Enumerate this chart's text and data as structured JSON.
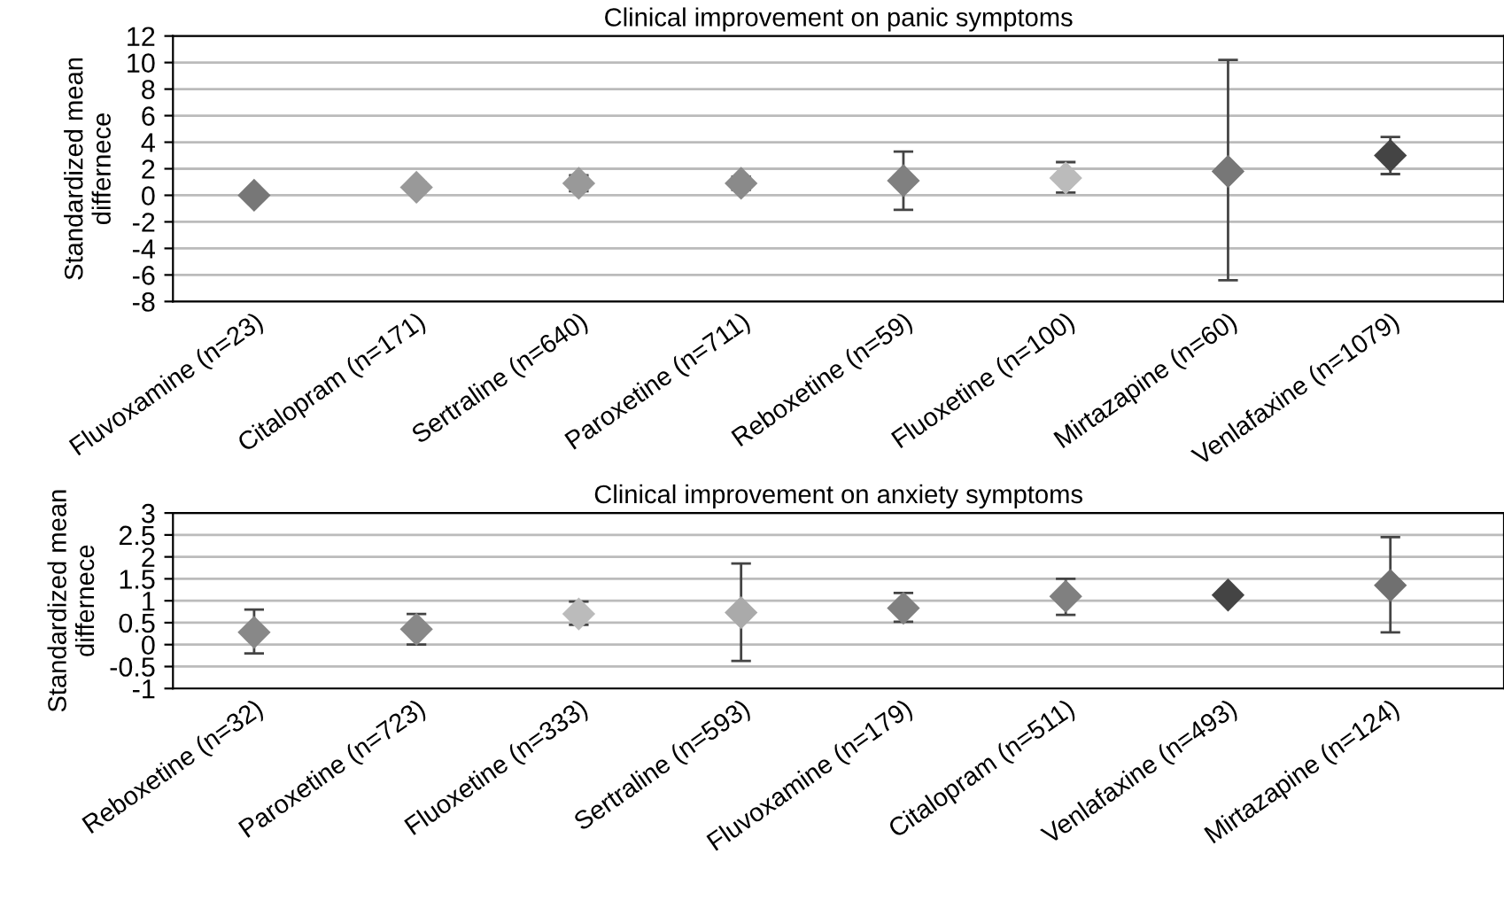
{
  "chart_data": [
    {
      "type": "scatter",
      "title": "Clinical improvement on panic symptoms",
      "ylabel": "Standardized mean\ndiffernece",
      "categories": [
        "Fluvoxamine (n=23)",
        "Citalopram (n=171)",
        "Sertraline (n=640)",
        "Paroxetine (n=711)",
        "Reboxetine (n=59)",
        "Fluoxetine (n=100)",
        "Mirtazapine (n=60)",
        "Venlafaxine (n=1079)"
      ],
      "values": [
        0,
        0.6,
        0.9,
        0.9,
        1.1,
        1.3,
        1.8,
        3.0
      ],
      "errors": [
        null,
        [
          0.2,
          1.0
        ],
        [
          0.3,
          1.5
        ],
        [
          0.4,
          1.4
        ],
        [
          -1.1,
          3.3
        ],
        [
          0.2,
          2.5
        ],
        [
          -6.4,
          10.2
        ],
        [
          1.6,
          4.4
        ]
      ],
      "colors": [
        "#777777",
        "#999999",
        "#999999",
        "#8a8a8a",
        "#808080",
        "#bbbbbb",
        "#777777",
        "#444444"
      ],
      "ylim": [
        -8,
        12
      ],
      "yticks": [
        -8,
        -6,
        -4,
        -2,
        0,
        2,
        4,
        6,
        8,
        10,
        12
      ],
      "grid": "y",
      "marker": "diamond"
    },
    {
      "type": "scatter",
      "title": "Clinical improvement on anxiety symptoms",
      "ylabel": "Standardized mean\ndiffernece",
      "categories": [
        "Reboxetine (n=32)",
        "Paroxetine (n=723)",
        "Fluoxetine (n=333)",
        "Sertraline (n=593)",
        "Fluvoxamine (n=179)",
        "Citalopram (n=511)",
        "Venlafaxine (n=493)",
        "Mirtazapine (n=124)"
      ],
      "values": [
        0.28,
        0.35,
        0.7,
        0.73,
        0.83,
        1.1,
        1.13,
        1.35
      ],
      "errors": [
        [
          -0.2,
          0.8
        ],
        [
          0,
          0.7
        ],
        [
          0.45,
          0.98
        ],
        [
          -0.37,
          1.85
        ],
        [
          0.52,
          1.18
        ],
        [
          0.68,
          1.5
        ],
        null,
        [
          0.28,
          2.45
        ]
      ],
      "colors": [
        "#888888",
        "#888888",
        "#bbbbbb",
        "#aaaaaa",
        "#808080",
        "#808080",
        "#444444",
        "#707070"
      ],
      "ylim": [
        -1,
        3
      ],
      "yticks": [
        -1,
        -0.5,
        0,
        0.5,
        1,
        1.5,
        2,
        2.5,
        3
      ],
      "grid": "y",
      "marker": "diamond"
    }
  ]
}
